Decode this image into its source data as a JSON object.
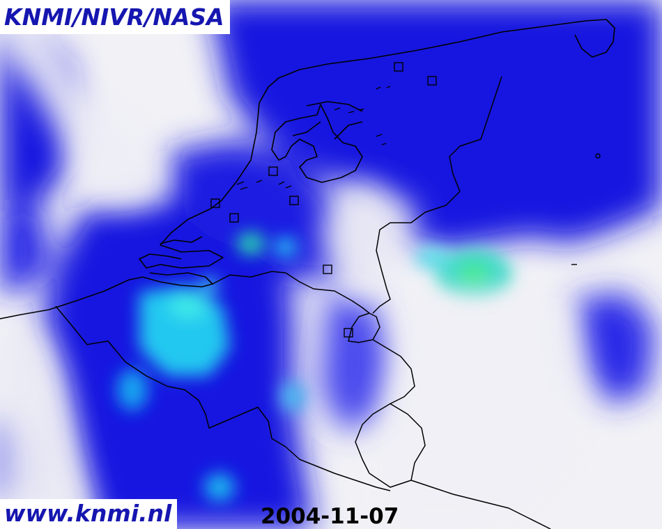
{
  "header": {
    "credit": "KNMI/NIVR/NASA"
  },
  "footer": {
    "url": "www.knmi.nl",
    "date": "2004-11-07"
  },
  "colors": {
    "field_low": "#f0f0f6",
    "field_mid": "#1010e6",
    "field_high": "#00e8ff",
    "field_peak": "#30e890",
    "borders": "#000000",
    "credit_text": "#1616b0"
  },
  "layers": [
    "satellite-field",
    "coastline",
    "country-borders",
    "station-markers"
  ]
}
